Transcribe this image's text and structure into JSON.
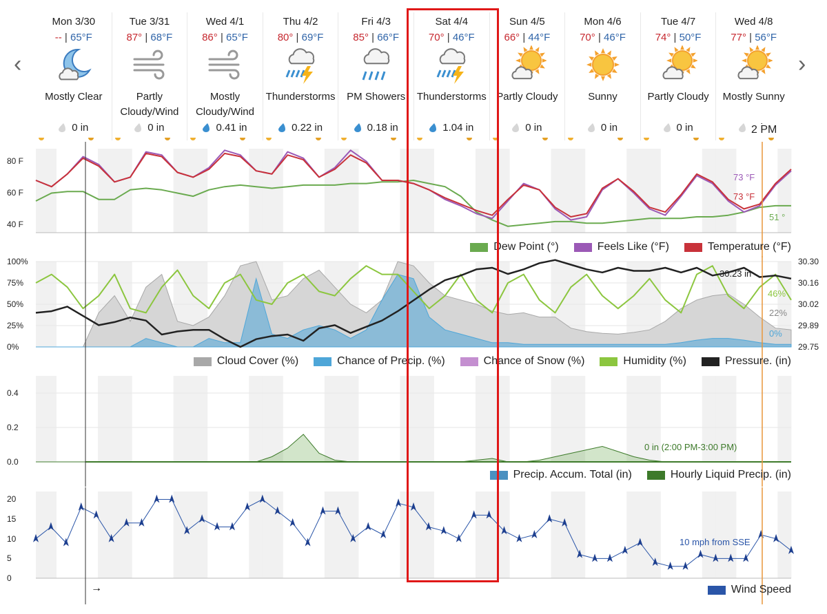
{
  "nav": {
    "prev": "‹",
    "next": "›"
  },
  "days": [
    {
      "name": "Mon 3/30",
      "hi": "--",
      "lo": "65°F",
      "cond": [
        "Mostly Clear"
      ],
      "precip": "0 in",
      "icon": "moon-cloud-icon",
      "drop": "gray"
    },
    {
      "name": "Tue 3/31",
      "hi": "87°",
      "lo": "68°F",
      "cond": [
        "Partly",
        "Cloudy/Wind"
      ],
      "precip": "0 in",
      "icon": "wind-icon",
      "drop": "gray"
    },
    {
      "name": "Wed 4/1",
      "hi": "86°",
      "lo": "65°F",
      "cond": [
        "Mostly",
        "Cloudy/Wind"
      ],
      "precip": "0.41 in",
      "icon": "wind-icon",
      "drop": "blue"
    },
    {
      "name": "Thu 4/2",
      "hi": "80°",
      "lo": "69°F",
      "cond": [
        "Thunderstorms"
      ],
      "precip": "0.22 in",
      "icon": "thunderstorm-icon",
      "drop": "blue"
    },
    {
      "name": "Fri 4/3",
      "hi": "85°",
      "lo": "66°F",
      "cond": [
        "PM Showers"
      ],
      "precip": "0.18 in",
      "icon": "rain-icon",
      "drop": "blue"
    },
    {
      "name": "Sat 4/4",
      "hi": "70°",
      "lo": "46°F",
      "cond": [
        "Thunderstorms"
      ],
      "precip": "1.04 in",
      "icon": "thunderstorm-icon",
      "drop": "blue"
    },
    {
      "name": "Sun 4/5",
      "hi": "66°",
      "lo": "44°F",
      "cond": [
        "Partly Cloudy"
      ],
      "precip": "0 in",
      "icon": "sun-cloud-icon",
      "drop": "gray"
    },
    {
      "name": "Mon 4/6",
      "hi": "70°",
      "lo": "46°F",
      "cond": [
        "Sunny"
      ],
      "precip": "0 in",
      "icon": "sun-icon",
      "drop": "gray"
    },
    {
      "name": "Tue 4/7",
      "hi": "74°",
      "lo": "50°F",
      "cond": [
        "Partly Cloudy"
      ],
      "precip": "0 in",
      "icon": "sun-cloud-icon",
      "drop": "gray"
    },
    {
      "name": "Wed 4/8",
      "hi": "77°",
      "lo": "56°F",
      "cond": [
        "Mostly Sunny"
      ],
      "precip": "0 in",
      "icon": "sun-cloud-icon",
      "drop": "gray"
    }
  ],
  "current_time": "2 PM",
  "colors": {
    "temp": "#c8323a",
    "feels": "#9b59b6",
    "dew": "#6aaa4f",
    "cloud": "#a8a8a8",
    "pop": "#4ea6d8",
    "snow": "#c48fd0",
    "humidity": "#8cc63f",
    "pressure": "#222222",
    "liquid": "#3d7a2a",
    "accum": "#4a90c0",
    "wind": "#2a55a8",
    "highlight": "#e01818",
    "now_line": "#e8953a"
  },
  "chart_data": [
    {
      "type": "line",
      "title": "",
      "y_ticks": [
        "80 F",
        "60 F",
        "40 F"
      ],
      "ylim": [
        35,
        88
      ],
      "series": [
        {
          "name": "Dew Point (°)",
          "key": "dew",
          "current_label": "51 °",
          "values": [
            55,
            60,
            61,
            61,
            56,
            56,
            62,
            63,
            62,
            60,
            58,
            62,
            64,
            65,
            64,
            63,
            64,
            65,
            65,
            65,
            66,
            66,
            67,
            67,
            68,
            66,
            64,
            58,
            48,
            43,
            39,
            40,
            41,
            42,
            42,
            41,
            41,
            42,
            43,
            44,
            44,
            44,
            45,
            45,
            46,
            48,
            51,
            52,
            52
          ]
        },
        {
          "name": "Feels Like (°F)",
          "key": "feels",
          "current_label": "73 °F",
          "values": [
            68,
            64,
            72,
            83,
            78,
            67,
            70,
            86,
            84,
            73,
            70,
            76,
            87,
            84,
            74,
            72,
            86,
            82,
            70,
            76,
            87,
            80,
            68,
            68,
            66,
            62,
            56,
            52,
            47,
            44,
            55,
            66,
            62,
            50,
            43,
            45,
            62,
            69,
            60,
            50,
            46,
            58,
            71,
            66,
            55,
            48,
            52,
            65,
            74
          ]
        },
        {
          "name": "Temperature (°F)",
          "key": "temp",
          "current_label": "73 °F",
          "values": [
            68,
            64,
            72,
            82,
            77,
            67,
            70,
            85,
            83,
            73,
            70,
            75,
            85,
            83,
            74,
            72,
            84,
            81,
            70,
            75,
            84,
            79,
            68,
            68,
            66,
            62,
            57,
            53,
            49,
            46,
            56,
            65,
            62,
            51,
            45,
            47,
            63,
            69,
            61,
            51,
            48,
            59,
            72,
            67,
            56,
            50,
            53,
            66,
            75
          ]
        }
      ],
      "legend": [
        "Dew Point (°)",
        "Feels Like (°F)",
        "Temperature (°F)"
      ]
    },
    {
      "type": "area",
      "title": "",
      "y_ticks_left": [
        "100%",
        "75%",
        "50%",
        "25%",
        "0%"
      ],
      "y_ticks_right": [
        "30.30",
        "30.16",
        "30.02",
        "29.89",
        "29.75"
      ],
      "ylim": [
        0,
        100
      ],
      "y2lim": [
        29.75,
        30.3
      ],
      "series": [
        {
          "name": "Cloud Cover (%)",
          "key": "cloud",
          "current_label": "22%",
          "values": [
            0,
            0,
            0,
            0,
            40,
            60,
            30,
            70,
            85,
            30,
            25,
            35,
            60,
            95,
            100,
            55,
            60,
            80,
            90,
            70,
            50,
            40,
            55,
            100,
            95,
            75,
            60,
            55,
            50,
            42,
            38,
            40,
            35,
            35,
            22,
            18,
            16,
            15,
            17,
            20,
            30,
            45,
            55,
            60,
            62,
            50,
            35,
            22,
            20
          ]
        },
        {
          "name": "Chance of Precip. (%)",
          "key": "pop",
          "current_label": "0%",
          "values": [
            0,
            0,
            0,
            0,
            0,
            0,
            0,
            10,
            5,
            0,
            0,
            10,
            5,
            5,
            80,
            15,
            10,
            20,
            25,
            20,
            10,
            20,
            55,
            85,
            80,
            35,
            20,
            15,
            10,
            5,
            5,
            3,
            3,
            3,
            3,
            3,
            3,
            3,
            3,
            3,
            3,
            5,
            8,
            10,
            10,
            8,
            5,
            3,
            3
          ]
        },
        {
          "name": "Chance of Snow (%)",
          "key": "snow",
          "values": []
        },
        {
          "name": "Humidity (%)",
          "key": "humidity",
          "current_label": "46%",
          "values": [
            75,
            85,
            70,
            45,
            60,
            85,
            45,
            40,
            70,
            90,
            60,
            45,
            75,
            85,
            55,
            50,
            75,
            85,
            65,
            60,
            80,
            95,
            85,
            85,
            65,
            45,
            60,
            85,
            55,
            40,
            75,
            85,
            55,
            40,
            70,
            85,
            60,
            45,
            60,
            80,
            55,
            40,
            85,
            95,
            60,
            45,
            70,
            85,
            55
          ]
        },
        {
          "name": "Pressure. (in)",
          "key": "pressure",
          "current_label": "30.23 in",
          "values": [
            29.97,
            29.98,
            30.01,
            29.95,
            29.89,
            29.91,
            29.94,
            29.92,
            29.83,
            29.85,
            29.86,
            29.86,
            29.8,
            29.75,
            29.8,
            29.82,
            29.83,
            29.79,
            29.87,
            29.89,
            29.84,
            29.88,
            29.92,
            29.98,
            30.05,
            30.12,
            30.18,
            30.21,
            30.25,
            30.26,
            30.22,
            30.25,
            30.29,
            30.31,
            30.28,
            30.25,
            30.23,
            30.26,
            30.24,
            30.24,
            30.26,
            30.23,
            30.26,
            30.21,
            30.23,
            30.26,
            30.2,
            30.21,
            30.19
          ]
        }
      ],
      "legend": [
        "Cloud Cover (%)",
        "Chance of Precip. (%)",
        "Chance of Snow (%)",
        "Humidity (%)",
        "Pressure. (in)"
      ]
    },
    {
      "type": "area",
      "title": "",
      "y_ticks": [
        "0.4",
        "0.2",
        "0.0"
      ],
      "ylim": [
        0,
        0.5
      ],
      "annotation": "0 in (2:00 PM-3:00 PM)",
      "series": [
        {
          "name": "Precip. Accum. Total (in)",
          "key": "accum",
          "values": []
        },
        {
          "name": "Hourly Liquid Precip. (in)",
          "key": "liquid",
          "values": [
            0,
            0,
            0,
            0,
            0,
            0,
            0,
            0,
            0,
            0,
            0,
            0,
            0,
            0,
            0,
            0.03,
            0.08,
            0.16,
            0.05,
            0.01,
            0,
            0,
            0,
            0,
            0,
            0,
            0,
            0,
            0.01,
            0.02,
            0,
            0,
            0.01,
            0.03,
            0.05,
            0.07,
            0.09,
            0.06,
            0.03,
            0.01,
            0,
            0,
            0,
            0,
            0,
            0,
            0,
            0,
            0
          ]
        }
      ],
      "legend": [
        "Precip. Accum. Total (in)",
        "Hourly Liquid Precip. (in)"
      ]
    },
    {
      "type": "line",
      "title": "",
      "y_ticks": [
        "20",
        "15",
        "10",
        "5",
        "0"
      ],
      "ylim": [
        0,
        22
      ],
      "annotation": "10 mph from SSE",
      "series": [
        {
          "name": "Wind Speed",
          "key": "wind",
          "values": [
            10,
            13,
            9,
            18,
            16,
            10,
            14,
            14,
            20,
            20,
            12,
            15,
            13,
            13,
            18,
            20,
            17,
            14,
            9,
            17,
            17,
            10,
            13,
            11,
            19,
            18,
            13,
            12,
            10,
            16,
            16,
            12,
            10,
            11,
            15,
            14,
            6,
            5,
            5,
            7,
            9,
            4,
            3,
            3,
            6,
            5,
            5,
            5,
            11,
            10,
            7
          ]
        }
      ],
      "legend": [
        "Wind Speed"
      ]
    }
  ]
}
